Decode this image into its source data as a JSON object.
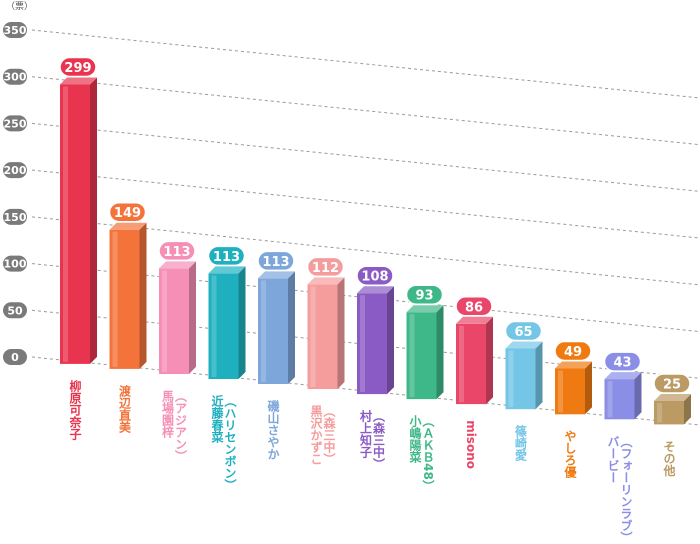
{
  "chart_data": {
    "type": "bar",
    "unit": "（票）",
    "ylim": [
      0,
      350
    ],
    "yticks": [
      0,
      50,
      100,
      150,
      200,
      250,
      300,
      350
    ],
    "grid": true,
    "categories": [
      {
        "lines": [
          "柳原可奈子"
        ],
        "value": 299,
        "color": "#e8344f"
      },
      {
        "lines": [
          "渡辺直美"
        ],
        "value": 149,
        "color": "#f3733b"
      },
      {
        "lines": [
          "馬場園梓",
          "（アジアン）"
        ],
        "value": 113,
        "color": "#f58fb6"
      },
      {
        "lines": [
          "近藤春菜",
          "（ハリセンボン）"
        ],
        "value": 113,
        "color": "#1fb0c0"
      },
      {
        "lines": [
          "磯山さやか"
        ],
        "value": 113,
        "color": "#7da6da"
      },
      {
        "lines": [
          "黒沢かずこ",
          "（森三中）"
        ],
        "value": 112,
        "color": "#f59c9c"
      },
      {
        "lines": [
          "村上知子",
          "（森三中）"
        ],
        "value": 108,
        "color": "#8a5bc4"
      },
      {
        "lines": [
          "小嶋陽菜",
          "（ＡＫＢ48）"
        ],
        "value": 93,
        "color": "#3fb889"
      },
      {
        "lines": [
          "misono"
        ],
        "value": 86,
        "color": "#ea4669"
      },
      {
        "lines": [
          "篠崎愛"
        ],
        "value": 65,
        "color": "#74c6e6"
      },
      {
        "lines": [
          "やしろ優"
        ],
        "value": 49,
        "color": "#f07a12"
      },
      {
        "lines": [
          "バービー",
          "（フォーリンラブ）"
        ],
        "value": 43,
        "color": "#8a8ee6"
      },
      {
        "lines": [
          "その他"
        ],
        "value": 25,
        "color": "#bb9a64"
      }
    ]
  }
}
